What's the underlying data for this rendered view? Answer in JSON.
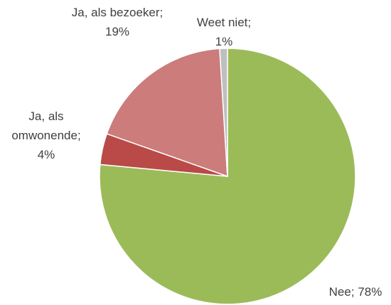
{
  "chart_data": {
    "type": "pie",
    "categories": [
      "Nee;",
      "Ja, als omwonende;",
      "Ja, als bezoeker;",
      "Weet niet;"
    ],
    "values": [
      78,
      4,
      19,
      1
    ],
    "value_labels": [
      "78%",
      "4%",
      "19%",
      "1%"
    ],
    "colors": [
      "#9bbb59",
      "#b94a48",
      "#cb7c7b",
      "#bfbfbf"
    ]
  }
}
